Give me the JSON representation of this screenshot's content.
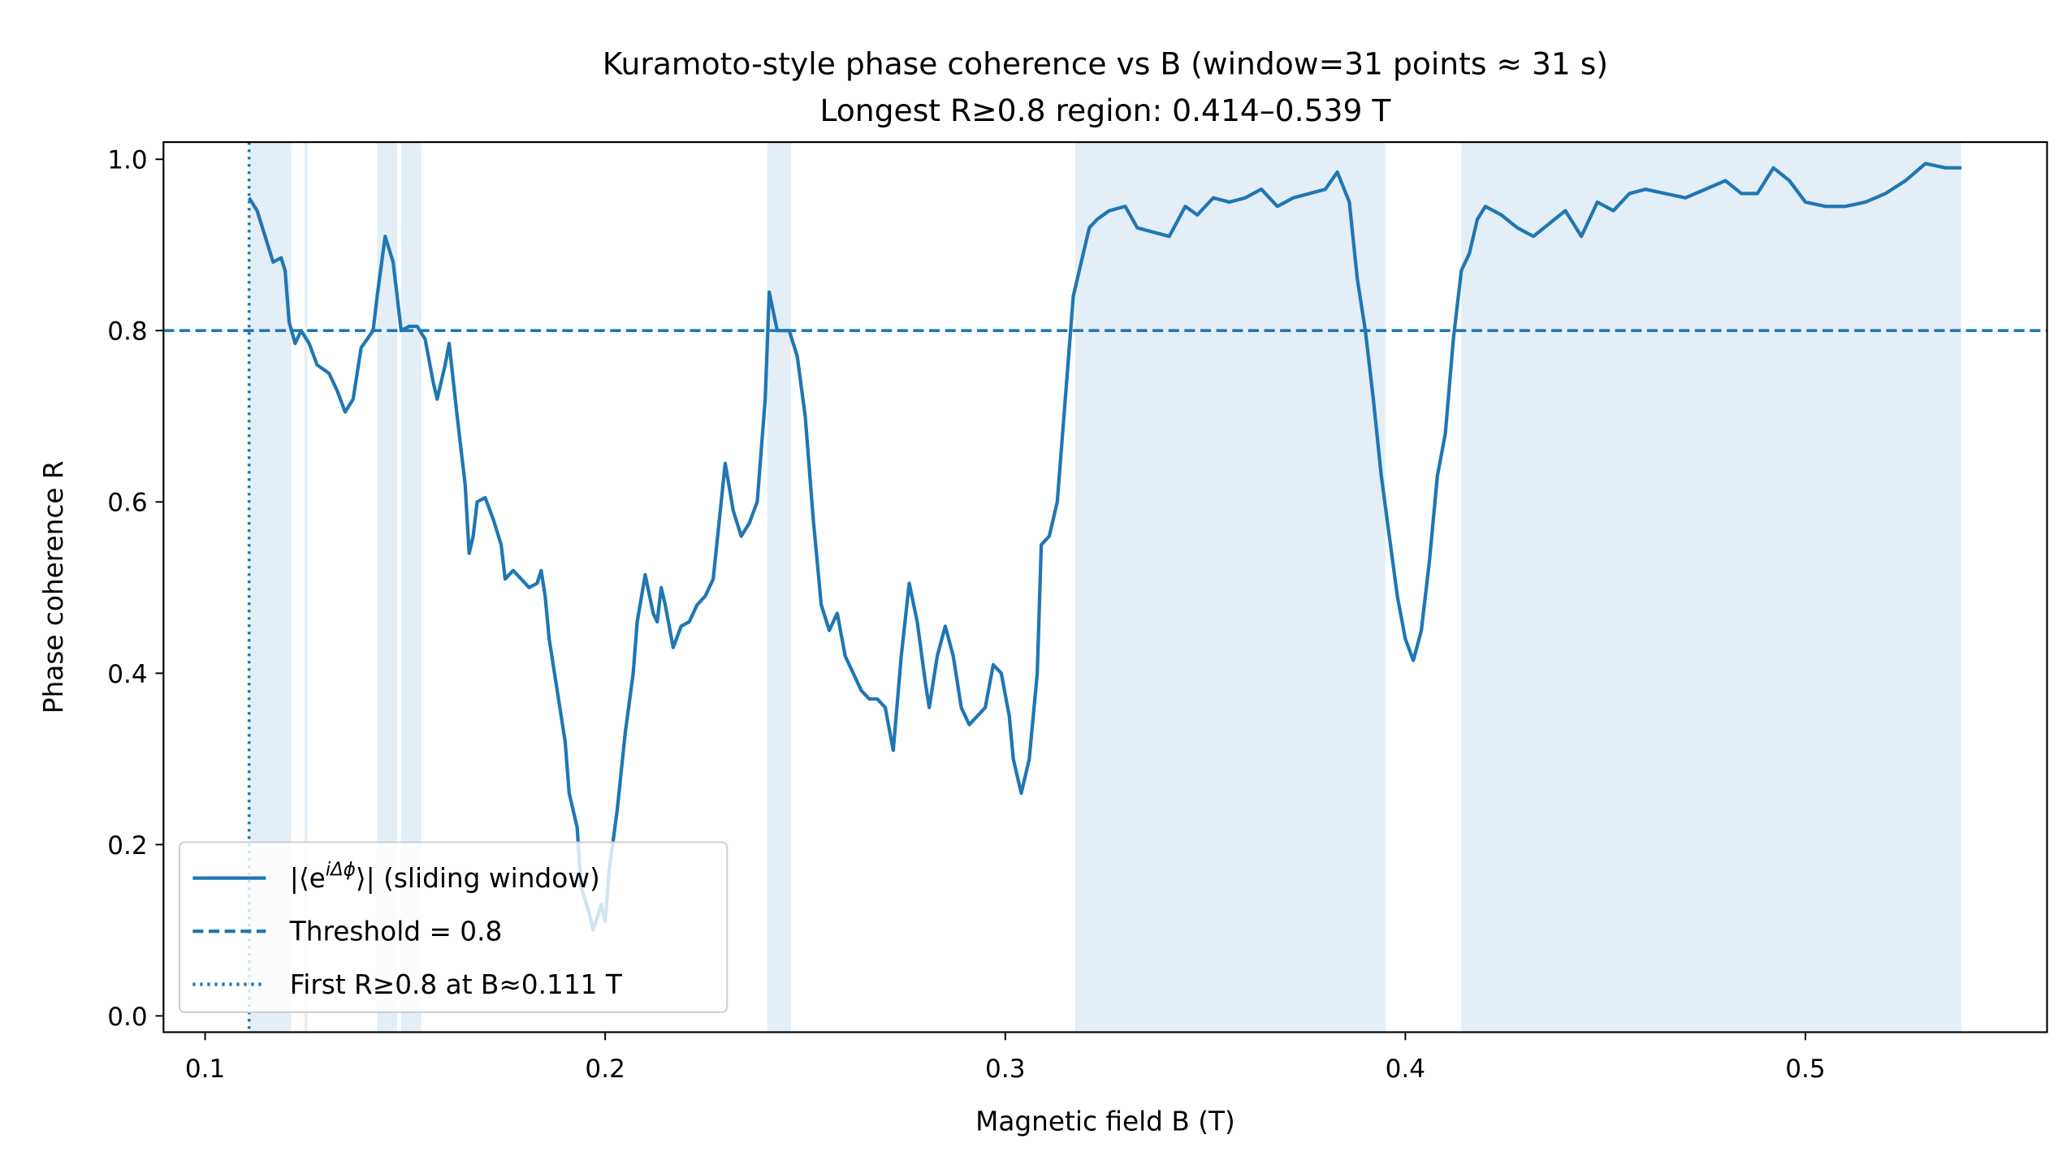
{
  "chart_data": {
    "type": "line",
    "title": "Kuramoto-style phase coherence vs B (window=31 points ≈ 31 s)",
    "subtitle": "Longest R≥0.8 region: 0.414–0.539 T",
    "x_label": "Magnetic field B (T)",
    "y_label": "Phase coherence R",
    "xlim": [
      0.0896,
      0.5604
    ],
    "ylim": [
      -0.019,
      1.02
    ],
    "xticks": [
      0.1,
      0.2,
      0.3,
      0.4,
      0.5
    ],
    "yticks": [
      {
        "value": 0,
        "label": "0.0"
      },
      0.2,
      0.4,
      0.6,
      0.8,
      {
        "value": 1,
        "label": "1.0"
      }
    ],
    "threshold": 0.8,
    "first_crossing": 0.111,
    "shaded_regions": [
      [
        0.111,
        0.1215
      ],
      [
        0.1248,
        0.1256
      ],
      [
        0.143,
        0.148
      ],
      [
        0.149,
        0.154
      ],
      [
        0.2405,
        0.2465
      ],
      [
        0.3175,
        0.395
      ],
      [
        0.414,
        0.539
      ]
    ],
    "color": "#1f77b4",
    "legend_position": "lower left",
    "legend": [
      {
        "text": "|⟨e",
        "sup": "iΔϕ",
        "tail": "⟩| (sliding window)"
      },
      {
        "text": "Threshold = 0.8"
      },
      {
        "text": "First R≥0.8 at B≈0.111 T"
      }
    ],
    "x": [
      0.111,
      0.113,
      0.115,
      0.117,
      0.119,
      0.12,
      0.121,
      0.1225,
      0.124,
      0.126,
      0.128,
      0.131,
      0.133,
      0.135,
      0.137,
      0.139,
      0.142,
      0.143,
      0.145,
      0.147,
      0.149,
      0.151,
      0.153,
      0.155,
      0.157,
      0.158,
      0.16,
      0.161,
      0.163,
      0.165,
      0.166,
      0.167,
      0.168,
      0.17,
      0.172,
      0.174,
      0.175,
      0.177,
      0.179,
      0.181,
      0.183,
      0.184,
      0.185,
      0.186,
      0.188,
      0.19,
      0.191,
      0.193,
      0.194,
      0.196,
      0.197,
      0.199,
      0.2,
      0.201,
      0.203,
      0.205,
      0.207,
      0.208,
      0.21,
      0.212,
      0.213,
      0.214,
      0.215,
      0.217,
      0.219,
      0.221,
      0.223,
      0.225,
      0.227,
      0.23,
      0.232,
      0.234,
      0.236,
      0.238,
      0.24,
      0.241,
      0.243,
      0.246,
      0.248,
      0.25,
      0.252,
      0.254,
      0.256,
      0.258,
      0.26,
      0.262,
      0.264,
      0.266,
      0.268,
      0.27,
      0.272,
      0.274,
      0.276,
      0.278,
      0.28,
      0.281,
      0.283,
      0.285,
      0.287,
      0.289,
      0.291,
      0.293,
      0.295,
      0.297,
      0.299,
      0.301,
      0.302,
      0.304,
      0.306,
      0.308,
      0.309,
      0.311,
      0.313,
      0.315,
      0.317,
      0.319,
      0.321,
      0.323,
      0.326,
      0.33,
      0.333,
      0.337,
      0.341,
      0.345,
      0.348,
      0.352,
      0.356,
      0.36,
      0.364,
      0.368,
      0.372,
      0.376,
      0.38,
      0.383,
      0.386,
      0.388,
      0.39,
      0.392,
      0.394,
      0.396,
      0.398,
      0.4,
      0.402,
      0.404,
      0.406,
      0.408,
      0.41,
      0.412,
      0.414,
      0.416,
      0.418,
      0.42,
      0.424,
      0.428,
      0.432,
      0.436,
      0.44,
      0.444,
      0.448,
      0.452,
      0.456,
      0.46,
      0.465,
      0.47,
      0.475,
      0.48,
      0.484,
      0.488,
      0.492,
      0.496,
      0.5,
      0.505,
      0.51,
      0.515,
      0.52,
      0.525,
      0.53,
      0.535,
      0.539
    ],
    "series": [
      {
        "color": "#1f77b4",
        "values": [
          0.955,
          0.94,
          0.91,
          0.88,
          0.885,
          0.87,
          0.81,
          0.785,
          0.8,
          0.785,
          0.76,
          0.75,
          0.73,
          0.705,
          0.72,
          0.78,
          0.8,
          0.84,
          0.91,
          0.88,
          0.8,
          0.805,
          0.805,
          0.79,
          0.74,
          0.72,
          0.76,
          0.785,
          0.7,
          0.62,
          0.54,
          0.56,
          0.6,
          0.605,
          0.58,
          0.55,
          0.51,
          0.52,
          0.51,
          0.5,
          0.505,
          0.52,
          0.49,
          0.44,
          0.38,
          0.32,
          0.26,
          0.22,
          0.15,
          0.12,
          0.1,
          0.13,
          0.11,
          0.17,
          0.24,
          0.33,
          0.4,
          0.46,
          0.515,
          0.47,
          0.46,
          0.5,
          0.48,
          0.43,
          0.455,
          0.46,
          0.48,
          0.49,
          0.51,
          0.645,
          0.59,
          0.56,
          0.575,
          0.6,
          0.72,
          0.845,
          0.8,
          0.8,
          0.77,
          0.7,
          0.58,
          0.48,
          0.45,
          0.47,
          0.42,
          0.4,
          0.38,
          0.37,
          0.37,
          0.36,
          0.31,
          0.42,
          0.505,
          0.46,
          0.39,
          0.36,
          0.42,
          0.455,
          0.42,
          0.36,
          0.34,
          0.35,
          0.36,
          0.41,
          0.4,
          0.35,
          0.3,
          0.26,
          0.3,
          0.4,
          0.55,
          0.56,
          0.6,
          0.72,
          0.84,
          0.88,
          0.92,
          0.93,
          0.94,
          0.945,
          0.92,
          0.915,
          0.91,
          0.945,
          0.935,
          0.955,
          0.95,
          0.955,
          0.965,
          0.945,
          0.955,
          0.96,
          0.965,
          0.985,
          0.95,
          0.86,
          0.8,
          0.72,
          0.63,
          0.56,
          0.49,
          0.44,
          0.415,
          0.45,
          0.53,
          0.63,
          0.68,
          0.79,
          0.87,
          0.89,
          0.93,
          0.945,
          0.935,
          0.92,
          0.91,
          0.925,
          0.94,
          0.91,
          0.95,
          0.94,
          0.96,
          0.965,
          0.96,
          0.955,
          0.965,
          0.975,
          0.96,
          0.96,
          0.99,
          0.975,
          0.95,
          0.945,
          0.945,
          0.95,
          0.96,
          0.975,
          0.995,
          0.99,
          0.99
        ]
      }
    ]
  }
}
